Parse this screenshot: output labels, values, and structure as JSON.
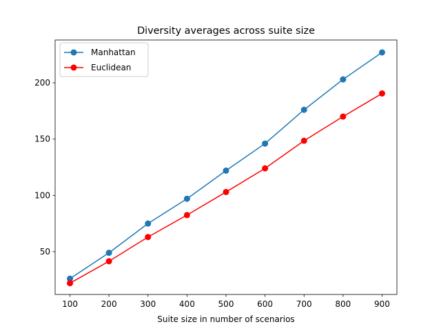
{
  "chart_data": {
    "type": "line",
    "title": "Diversity averages across suite size",
    "xlabel": "Suite size in number of scenarios",
    "ylabel": "",
    "x": [
      100,
      200,
      300,
      400,
      500,
      600,
      700,
      800,
      900
    ],
    "xticks": [
      100,
      200,
      300,
      400,
      500,
      600,
      700,
      800,
      900
    ],
    "yticks": [
      50,
      100,
      150,
      200
    ],
    "xlim": [
      62,
      938
    ],
    "ylim": [
      12,
      238
    ],
    "grid": false,
    "legend_position": "top-left",
    "series": [
      {
        "name": "Manhattan",
        "color": "#1f77b4",
        "values": [
          26,
          49,
          75,
          97,
          122,
          146,
          176,
          203,
          227
        ]
      },
      {
        "name": "Euclidean",
        "color": "#ff0000",
        "values": [
          22,
          41.5,
          63,
          82.5,
          103,
          124,
          148.5,
          170,
          190.5
        ]
      }
    ]
  }
}
